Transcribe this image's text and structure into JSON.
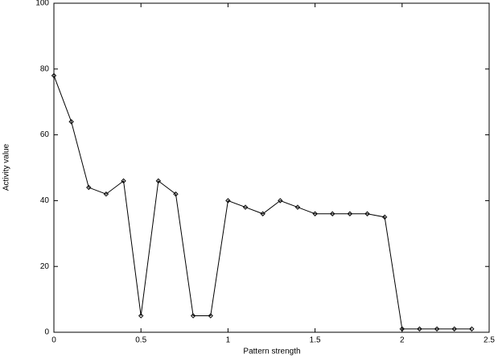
{
  "chart_data": {
    "type": "line",
    "x_label": "Pattern strength",
    "y_label": "Activity value",
    "x": [
      0,
      0.1,
      0.2,
      0.3,
      0.4,
      0.5,
      0.6,
      0.7,
      0.8,
      0.9,
      1.0,
      1.1,
      1.2,
      1.3,
      1.4,
      1.5,
      1.6,
      1.7,
      1.8,
      1.9,
      2.0,
      2.1,
      2.2,
      2.3,
      2.4
    ],
    "values": [
      78,
      64,
      44,
      42,
      46,
      5,
      46,
      42,
      5,
      5,
      40,
      38,
      36,
      40,
      38,
      36,
      36,
      36,
      36,
      35,
      1,
      1,
      1,
      1,
      1
    ],
    "color": "#000000",
    "xlim": [
      0,
      2.5
    ],
    "xticks": [
      0,
      0.5,
      1,
      1.5,
      2,
      2.5
    ],
    "ylim": [
      0,
      100
    ],
    "yticks": [
      0,
      20,
      40,
      60,
      80,
      100
    ],
    "grid": false
  }
}
